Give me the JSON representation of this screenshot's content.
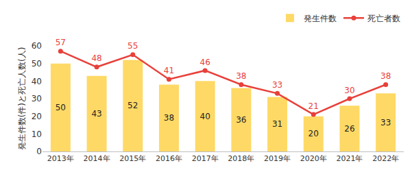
{
  "chart_data": {
    "type": "bar",
    "y_label": "発生件数(件)と死亡人数(人)",
    "categories": [
      "2013年",
      "2014年",
      "2015年",
      "2016年",
      "2017年",
      "2018年",
      "2019年",
      "2020年",
      "2021年",
      "2022年"
    ],
    "series": [
      {
        "name": "発生件数",
        "type": "bar",
        "color": "#ffd966",
        "values": [
          50,
          43,
          52,
          38,
          40,
          36,
          31,
          20,
          26,
          33
        ]
      },
      {
        "name": "死亡者数",
        "type": "line",
        "color": "#e8403a",
        "marker": "circle",
        "values": [
          57,
          48,
          55,
          41,
          46,
          38,
          33,
          21,
          30,
          38
        ]
      }
    ],
    "ylim": [
      0,
      60
    ],
    "yticks": [
      0,
      10,
      20,
      30,
      40,
      50,
      60
    ],
    "grid": false,
    "legend": "top right",
    "data_labels": true
  }
}
